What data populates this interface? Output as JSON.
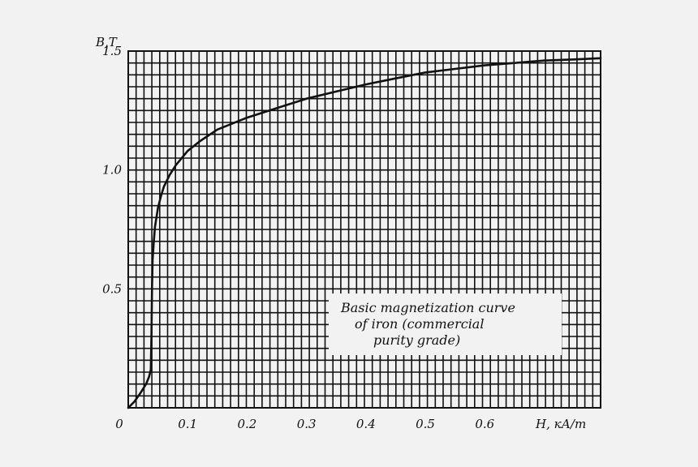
{
  "chart_data": {
    "type": "line",
    "title": "",
    "xlabel": "H, кА/m",
    "ylabel": "B,T",
    "xlim": [
      0,
      0.795
    ],
    "ylim": [
      0,
      1.5
    ],
    "grid": true,
    "x_ticks": [
      {
        "value": 0,
        "label": "0"
      },
      {
        "value": 0.1,
        "label": "0.1"
      },
      {
        "value": 0.2,
        "label": "0.2"
      },
      {
        "value": 0.3,
        "label": "0.3"
      },
      {
        "value": 0.4,
        "label": "0.4"
      },
      {
        "value": 0.5,
        "label": "0.5"
      },
      {
        "value": 0.6,
        "label": "0.6"
      }
    ],
    "y_ticks": [
      {
        "value": 0.5,
        "label": "0.5"
      },
      {
        "value": 1.0,
        "label": "1.0"
      },
      {
        "value": 1.5,
        "label": "1.5"
      }
    ],
    "annotation": [
      "Basic magnetization curve",
      "of iron (commercial",
      "purity grade)"
    ],
    "series": [
      {
        "name": "",
        "x": [
          0,
          0.01,
          0.02,
          0.03,
          0.035,
          0.038,
          0.039,
          0.04,
          0.041,
          0.043,
          0.045,
          0.05,
          0.055,
          0.06,
          0.07,
          0.08,
          0.1,
          0.12,
          0.15,
          0.2,
          0.25,
          0.3,
          0.35,
          0.4,
          0.45,
          0.5,
          0.55,
          0.6,
          0.65,
          0.7,
          0.75,
          0.795
        ],
        "y": [
          0,
          0.025,
          0.06,
          0.1,
          0.13,
          0.16,
          0.3,
          0.5,
          0.62,
          0.7,
          0.76,
          0.84,
          0.89,
          0.93,
          0.98,
          1.02,
          1.08,
          1.12,
          1.17,
          1.22,
          1.26,
          1.3,
          1.33,
          1.36,
          1.385,
          1.41,
          1.425,
          1.44,
          1.45,
          1.46,
          1.465,
          1.47
        ]
      }
    ]
  }
}
